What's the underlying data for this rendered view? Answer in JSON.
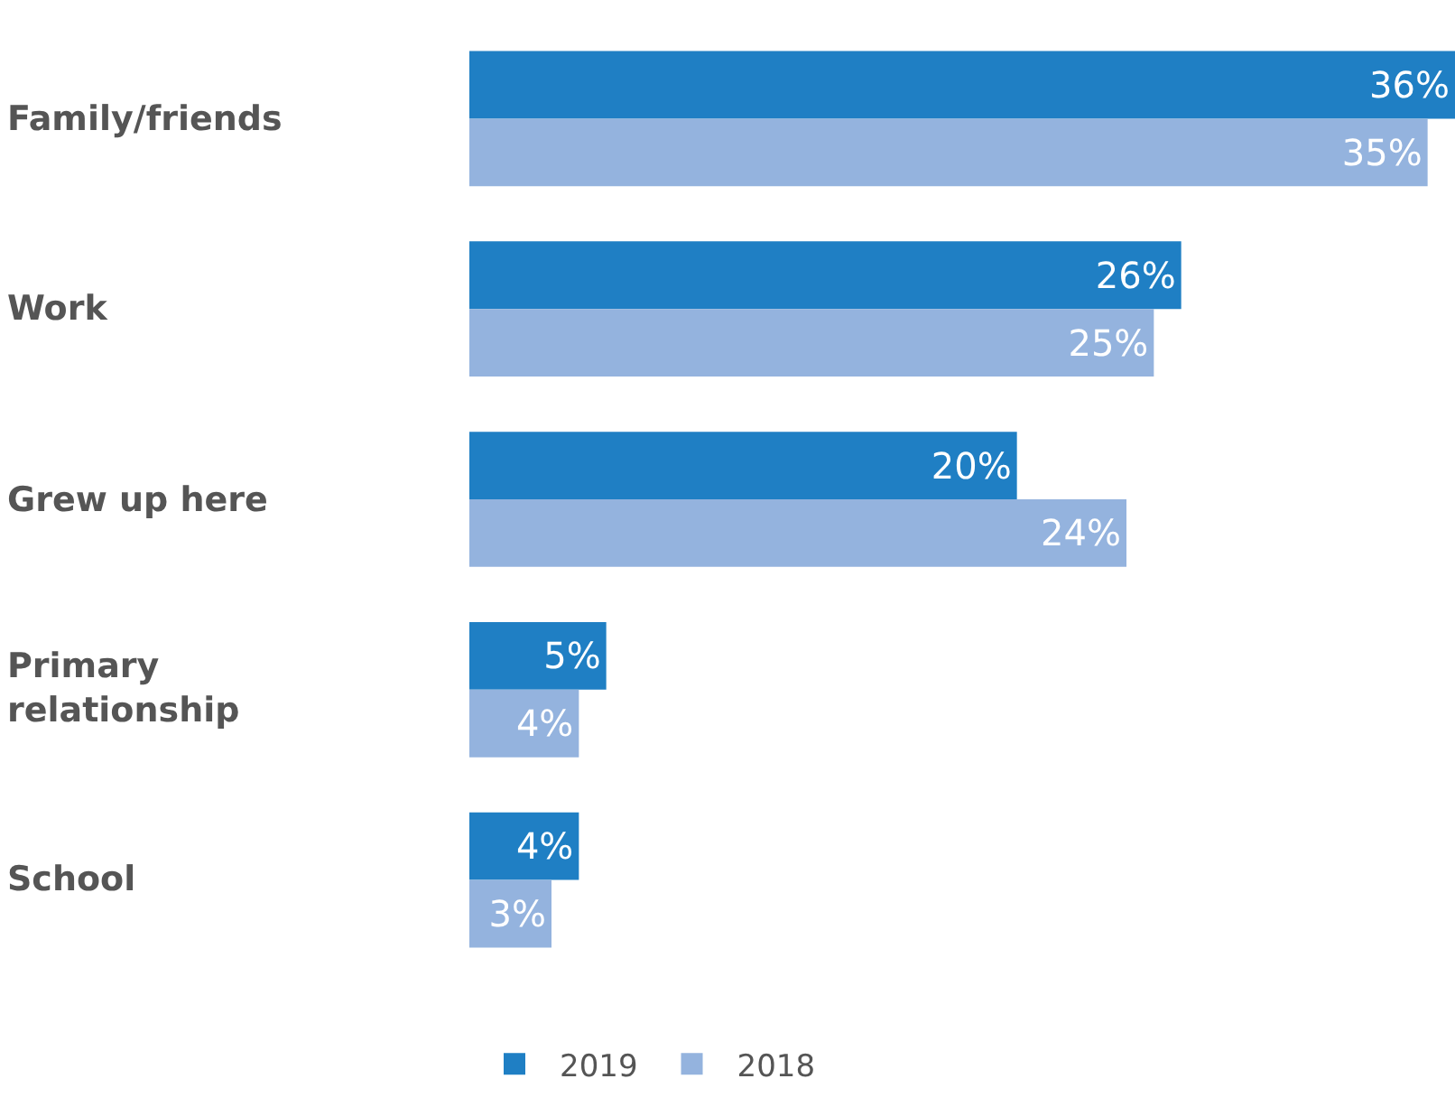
{
  "chart_data": {
    "type": "bar",
    "orientation": "horizontal",
    "categories": [
      "Family/friends",
      "Work",
      "Grew up here",
      "Primary relationship",
      "School"
    ],
    "series": [
      {
        "name": "2019",
        "color": "#1f7fc4",
        "values": [
          36,
          26,
          20,
          5,
          4
        ],
        "value_labels": [
          "36%",
          "26%",
          "20%",
          "5%",
          "4%"
        ]
      },
      {
        "name": "2018",
        "color": "#94b3de",
        "values": [
          35,
          25,
          24,
          4,
          3
        ],
        "value_labels": [
          "35%",
          "25%",
          "24%",
          "4%",
          "3%"
        ]
      }
    ],
    "legend": "bottom"
  }
}
